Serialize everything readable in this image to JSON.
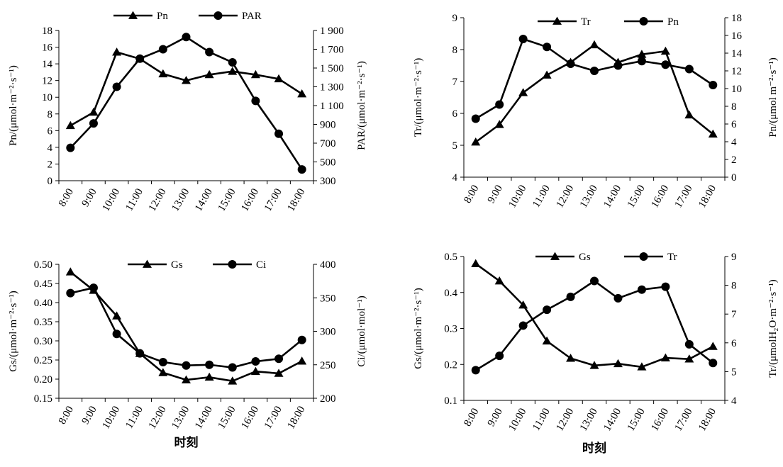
{
  "chart_data": [
    {
      "type": "line",
      "x": [
        "8:00",
        "9:00",
        "10:00",
        "11:00",
        "12:00",
        "13:00",
        "14:00",
        "15:00",
        "16:00",
        "17:00",
        "18:00"
      ],
      "xlabel": "",
      "y_left": {
        "label": "Pn/(μmol·m⁻²·s⁻¹)",
        "lim": [
          0,
          18
        ],
        "ticks": [
          "0",
          "2",
          "4",
          "6",
          "8",
          "10",
          "12",
          "14",
          "16",
          "18"
        ]
      },
      "y_right": {
        "label": "PAR/(μmol·m⁻²·s⁻¹)",
        "lim": [
          300,
          1900
        ],
        "ticks": [
          "300",
          "500",
          "700",
          "900",
          "1 100",
          "1 300",
          "1 500",
          "1 700",
          "1 900"
        ]
      },
      "legend_position": "top",
      "series": [
        {
          "name": "Pn",
          "marker": "triangle",
          "axis": "left",
          "values": [
            6.6,
            8.2,
            15.4,
            14.6,
            12.8,
            12.0,
            12.7,
            13.1,
            12.7,
            12.2,
            10.4
          ]
        },
        {
          "name": "PAR",
          "marker": "circle",
          "axis": "right",
          "values": [
            650,
            910,
            1300,
            1600,
            1700,
            1830,
            1670,
            1560,
            1150,
            800,
            420
          ]
        }
      ]
    },
    {
      "type": "line",
      "x": [
        "8:00",
        "9:00",
        "10:00",
        "11:00",
        "12:00",
        "13:00",
        "14:00",
        "15:00",
        "16:00",
        "17:00",
        "18:00"
      ],
      "xlabel": "",
      "y_left": {
        "label": "Tr/(μmol·m⁻²·s⁻¹)",
        "lim": [
          4,
          9
        ],
        "ticks": [
          "4",
          "5",
          "6",
          "7",
          "8",
          "9"
        ]
      },
      "y_right": {
        "label": "Pn/(μmol m⁻²·s⁻¹)",
        "lim": [
          0,
          18
        ],
        "ticks": [
          "0",
          "2",
          "4",
          "6",
          "8",
          "10",
          "12",
          "14",
          "16",
          "18"
        ]
      },
      "legend_position": "top",
      "series": [
        {
          "name": "Tr",
          "marker": "triangle",
          "axis": "left",
          "values": [
            5.1,
            5.65,
            6.65,
            7.2,
            7.6,
            8.15,
            7.6,
            7.85,
            7.95,
            5.95,
            5.35
          ]
        },
        {
          "name": "Pn",
          "marker": "circle",
          "axis": "right",
          "values": [
            6.6,
            8.2,
            15.6,
            14.7,
            12.8,
            12.0,
            12.6,
            13.1,
            12.7,
            12.2,
            10.4
          ]
        }
      ]
    },
    {
      "type": "line",
      "x": [
        "8:00",
        "9:00",
        "10:00",
        "11:00",
        "12:00",
        "13:00",
        "14:00",
        "15:00",
        "16:00",
        "17:00",
        "18:00"
      ],
      "xlabel": "时刻",
      "y_left": {
        "label": "Gs/(μmol·m⁻²·s⁻¹)",
        "lim": [
          0.15,
          0.5
        ],
        "ticks": [
          "0.15",
          "0.20",
          "0.25",
          "0.30",
          "0.35",
          "0.40",
          "0.45",
          "0.50"
        ]
      },
      "y_right": {
        "label": "Ci/(μmol·mol⁻¹)",
        "lim": [
          200,
          400
        ],
        "ticks": [
          "200",
          "250",
          "300",
          "350",
          "400"
        ]
      },
      "legend_position": "top",
      "series": [
        {
          "name": "Gs",
          "marker": "triangle",
          "axis": "left",
          "values": [
            0.48,
            0.432,
            0.365,
            0.267,
            0.217,
            0.198,
            0.205,
            0.195,
            0.22,
            0.215,
            0.247
          ]
        },
        {
          "name": "Ci",
          "marker": "circle",
          "axis": "right",
          "values": [
            357,
            365,
            296,
            267,
            254,
            249,
            250,
            246,
            255,
            259,
            287
          ]
        }
      ]
    },
    {
      "type": "line",
      "x": [
        "8:00",
        "9:00",
        "10:00",
        "11:00",
        "12:00",
        "13:00",
        "14:00",
        "15:00",
        "16:00",
        "17:00",
        "18:00"
      ],
      "xlabel": "时刻",
      "y_left": {
        "label": "Gs/(μmol·m⁻²·s⁻¹)",
        "lim": [
          0.1,
          0.5
        ],
        "ticks": [
          "0.1",
          "0.2",
          "0.3",
          "0.4",
          "0.5"
        ]
      },
      "y_right": {
        "label": "Tr/(μmolH₂O·m⁻²·s⁻¹)",
        "lim": [
          4,
          9
        ],
        "ticks": [
          "4",
          "5",
          "6",
          "7",
          "8",
          "9"
        ]
      },
      "legend_position": "top",
      "series": [
        {
          "name": "Gs",
          "marker": "triangle",
          "axis": "left",
          "values": [
            0.48,
            0.432,
            0.365,
            0.265,
            0.217,
            0.197,
            0.202,
            0.193,
            0.218,
            0.215,
            0.25
          ]
        },
        {
          "name": "Tr",
          "marker": "circle",
          "axis": "right",
          "values": [
            5.05,
            5.55,
            6.6,
            7.15,
            7.6,
            8.15,
            7.55,
            7.85,
            7.95,
            5.95,
            5.3
          ]
        }
      ]
    }
  ]
}
